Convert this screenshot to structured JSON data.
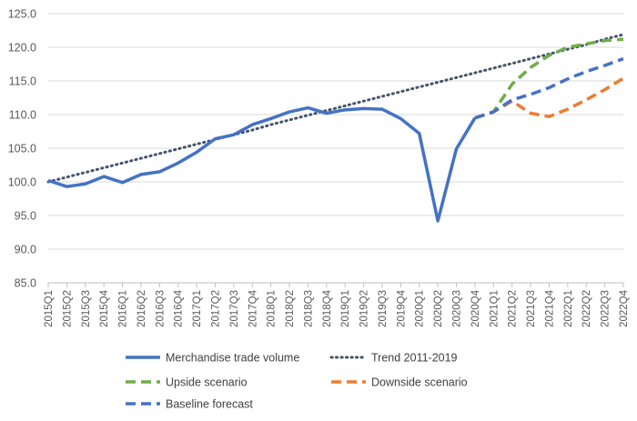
{
  "chart_data": {
    "type": "line",
    "title": "",
    "xlabel": "",
    "ylabel": "",
    "ylim": [
      85,
      125
    ],
    "yticks": [
      "85.0",
      "90.0",
      "95.0",
      "100.0",
      "105.0",
      "110.0",
      "115.0",
      "120.0",
      "125.0"
    ],
    "grid": "horizontal",
    "categories": [
      "2015Q1",
      "2015Q2",
      "2015Q3",
      "2015Q4",
      "2016Q1",
      "2016Q2",
      "2016Q3",
      "2016Q4",
      "2017Q1",
      "2017Q2",
      "2017Q3",
      "2017Q4",
      "2018Q1",
      "2018Q2",
      "2018Q3",
      "2018Q4",
      "2019Q1",
      "2019Q2",
      "2019Q3",
      "2019Q4",
      "2020Q1",
      "2020Q2",
      "2020Q3",
      "2020Q4",
      "2021Q1",
      "2021Q2",
      "2021Q3",
      "2021Q4",
      "2022Q1",
      "2022Q2",
      "2022Q3",
      "2022Q4"
    ],
    "series": [
      {
        "name": "Merchandise trade volume",
        "color": "#4472C4",
        "dash": "solid",
        "values": [
          100.2,
          99.3,
          99.7,
          100.8,
          99.9,
          101.1,
          101.5,
          102.8,
          104.4,
          106.4,
          107.0,
          108.5,
          109.4,
          110.4,
          111.0,
          110.2,
          110.7,
          110.9,
          110.8,
          109.4,
          107.2,
          94.2,
          104.9,
          109.5,
          null,
          null,
          null,
          null,
          null,
          null,
          null,
          null
        ]
      },
      {
        "name": "Trend 2011-2019",
        "color": "#44546A",
        "dash": "dotted",
        "values": [
          100.0,
          100.7,
          101.4,
          102.1,
          102.8,
          103.5,
          104.2,
          104.9,
          105.6,
          106.3,
          107.0,
          107.7,
          108.5,
          109.2,
          109.9,
          110.6,
          111.3,
          112.0,
          112.7,
          113.4,
          114.1,
          114.8,
          115.5,
          116.2,
          116.9,
          117.6,
          118.3,
          119.0,
          119.7,
          120.4,
          121.2,
          121.9
        ]
      },
      {
        "name": "Upside scenario",
        "color": "#70AD47",
        "dash": "dashed",
        "values": [
          null,
          null,
          null,
          null,
          null,
          null,
          null,
          null,
          null,
          null,
          null,
          null,
          null,
          null,
          null,
          null,
          null,
          null,
          null,
          null,
          null,
          null,
          null,
          109.5,
          110.4,
          114.5,
          117.0,
          118.8,
          120.0,
          120.5,
          121.0,
          121.2
        ]
      },
      {
        "name": "Downside scenario",
        "color": "#ED7D31",
        "dash": "dashed",
        "values": [
          null,
          null,
          null,
          null,
          null,
          null,
          null,
          null,
          null,
          null,
          null,
          null,
          null,
          null,
          null,
          null,
          null,
          null,
          null,
          null,
          null,
          null,
          null,
          109.5,
          110.4,
          112.0,
          110.2,
          109.7,
          110.8,
          112.2,
          113.7,
          115.4
        ]
      },
      {
        "name": "Baseline forecast",
        "color": "#4472C4",
        "dash": "dashed",
        "values": [
          null,
          null,
          null,
          null,
          null,
          null,
          null,
          null,
          null,
          null,
          null,
          null,
          null,
          null,
          null,
          null,
          null,
          null,
          null,
          null,
          null,
          null,
          null,
          109.5,
          110.4,
          112.2,
          113.0,
          114.0,
          115.3,
          116.4,
          117.3,
          118.3
        ]
      }
    ],
    "legend": {
      "placement": "bottom",
      "entries": [
        {
          "label": "Merchandise trade volume",
          "color": "#4472C4",
          "dash": "solid"
        },
        {
          "label": "Trend 2011-2019",
          "color": "#44546A",
          "dash": "dotted"
        },
        {
          "label": "Upside scenario",
          "color": "#70AD47",
          "dash": "dashed"
        },
        {
          "label": "Downside scenario",
          "color": "#ED7D31",
          "dash": "dashed"
        },
        {
          "label": "Baseline forecast",
          "color": "#4472C4",
          "dash": "dashed"
        }
      ]
    },
    "colors": {
      "gridline": "#D9D9D9",
      "axis": "#BFBFBF",
      "tick_text": "#595959"
    }
  }
}
